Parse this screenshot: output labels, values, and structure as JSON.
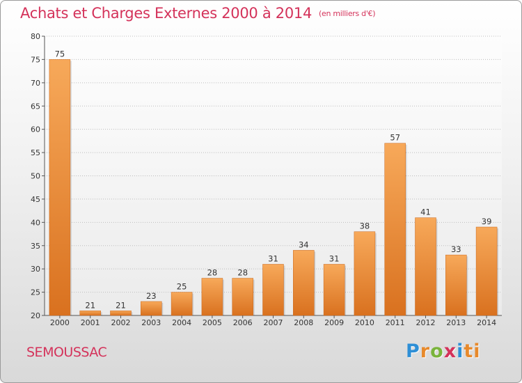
{
  "chart_data": {
    "type": "bar",
    "title": "Achats et Charges Externes 2000 à 2014",
    "subtitle": "(en milliers d'€)",
    "categories": [
      "2000",
      "2001",
      "2002",
      "2003",
      "2004",
      "2005",
      "2006",
      "2007",
      "2008",
      "2009",
      "2010",
      "2011",
      "2012",
      "2013",
      "2014"
    ],
    "values": [
      75,
      21,
      21,
      23,
      25,
      28,
      28,
      31,
      34,
      31,
      38,
      57,
      41,
      33,
      39
    ],
    "ylim": [
      20,
      80
    ],
    "yticks": [
      20,
      25,
      30,
      35,
      40,
      45,
      50,
      55,
      60,
      65,
      70,
      75,
      80
    ],
    "grid": true,
    "bar_color_light": "#f7a95a",
    "bar_color_dark": "#d9711f",
    "title_color": "#d4325a"
  },
  "footer": {
    "town": "SEMOUSSAC",
    "logo_letters": [
      "P",
      "r",
      "o",
      "x",
      "i",
      "ti"
    ]
  }
}
